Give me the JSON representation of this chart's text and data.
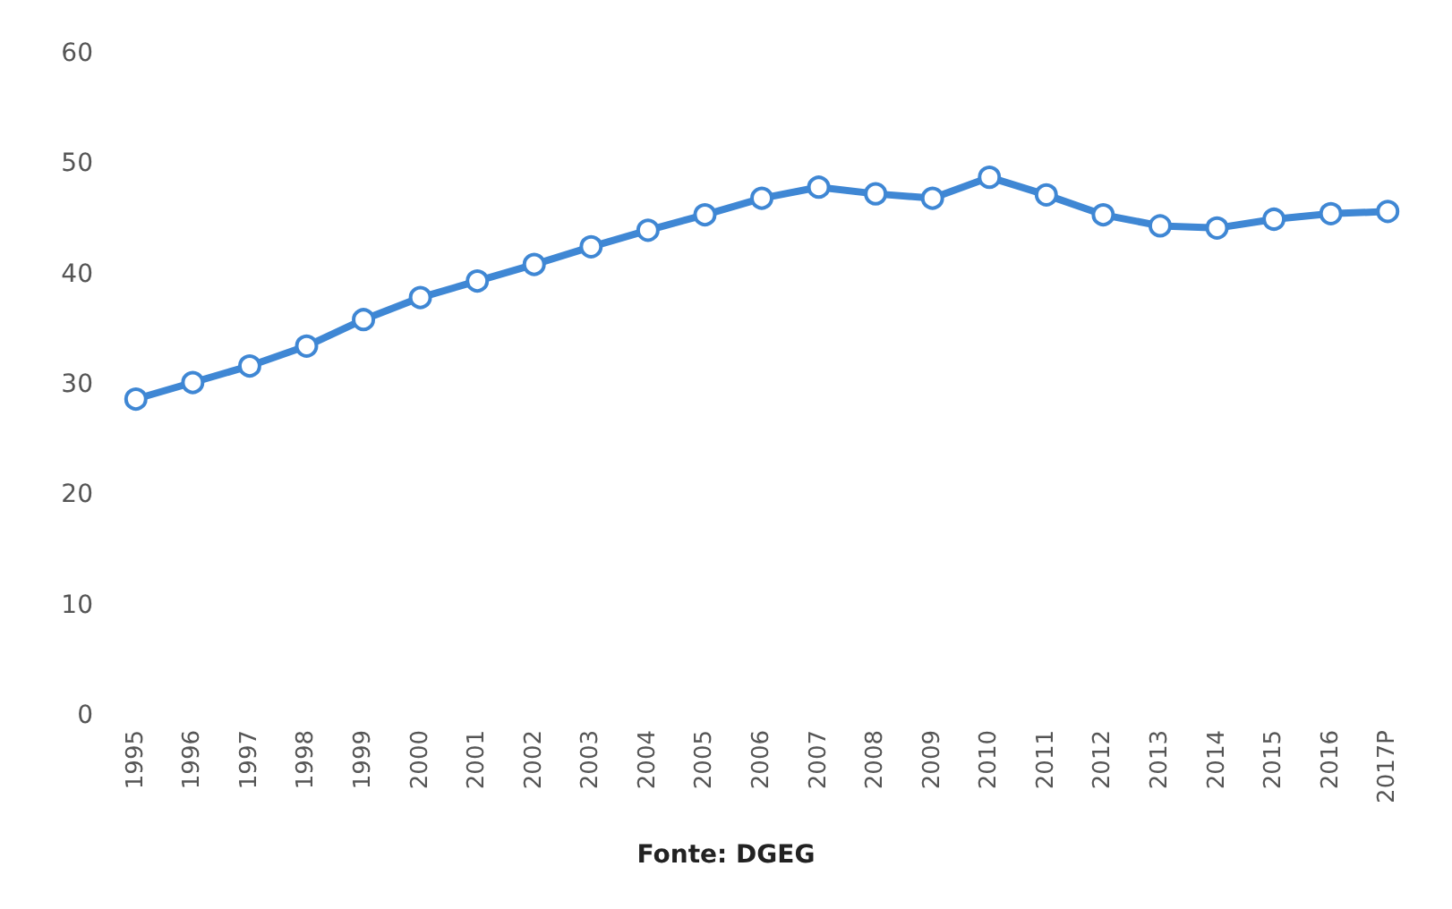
{
  "chart_data": {
    "type": "line",
    "categories": [
      "1995",
      "1996",
      "1997",
      "1998",
      "1999",
      "2000",
      "2001",
      "2002",
      "2003",
      "2004",
      "2005",
      "2006",
      "2007",
      "2008",
      "2009",
      "2010",
      "2011",
      "2012",
      "2013",
      "2014",
      "2015",
      "2016",
      "2017P"
    ],
    "series": [
      {
        "color": "#3f87d4",
        "values": [
          28.7,
          30.2,
          31.7,
          33.5,
          35.9,
          37.9,
          39.4,
          40.9,
          42.5,
          44.0,
          45.4,
          46.9,
          47.9,
          47.3,
          46.9,
          48.8,
          47.2,
          45.4,
          44.4,
          44.2,
          45.0,
          45.5,
          45.7
        ]
      }
    ],
    "ylim": [
      0,
      60
    ],
    "yticks": [
      0,
      10,
      20,
      30,
      40,
      50,
      60
    ],
    "marker": "circle",
    "grid": false,
    "annotations": [
      "Fonte: DGEG"
    ]
  }
}
